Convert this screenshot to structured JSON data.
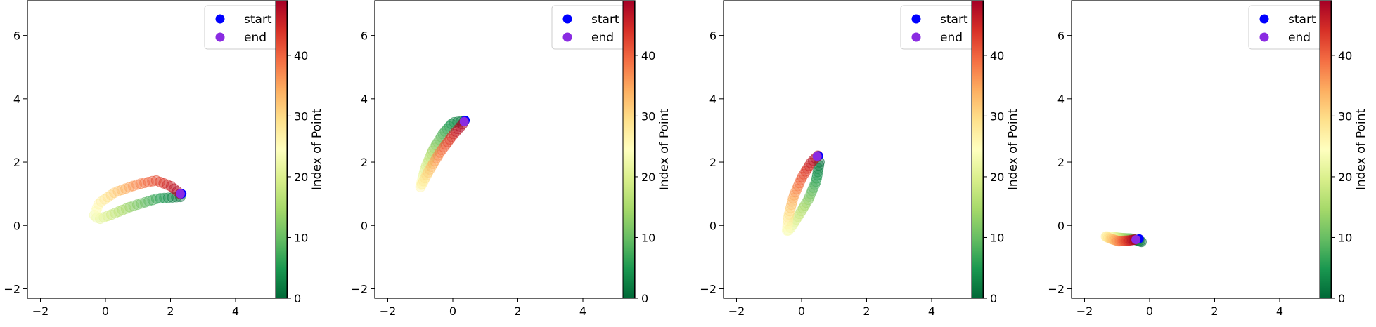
{
  "chart_data": [
    {
      "type": "scatter",
      "xlim": [
        -2.4,
        5.6
      ],
      "ylim": [
        -2.3,
        7.1
      ],
      "xticks": [
        -2,
        0,
        2,
        4
      ],
      "yticks": [
        -2,
        0,
        2,
        4,
        6
      ],
      "waypoints": [
        [
          2.3,
          0.9
        ],
        [
          1.6,
          0.85
        ],
        [
          0.8,
          0.6
        ],
        [
          0.2,
          0.35
        ],
        [
          -0.2,
          0.2
        ],
        [
          -0.35,
          0.3
        ],
        [
          -0.2,
          0.7
        ],
        [
          0.3,
          1.05
        ],
        [
          1.0,
          1.3
        ],
        [
          1.55,
          1.42
        ],
        [
          2.0,
          1.25
        ],
        [
          2.3,
          1.0
        ]
      ],
      "start": [
        2.35,
        1.0
      ],
      "end": [
        2.3,
        1.0
      ]
    },
    {
      "type": "scatter",
      "xlim": [
        -2.4,
        5.6
      ],
      "ylim": [
        -2.3,
        7.1
      ],
      "xticks": [
        -2,
        0,
        2,
        4
      ],
      "yticks": [
        -2,
        0,
        2,
        4,
        6
      ],
      "waypoints": [
        [
          0.35,
          3.3
        ],
        [
          0.0,
          3.25
        ],
        [
          -0.3,
          2.9
        ],
        [
          -0.6,
          2.4
        ],
        [
          -0.85,
          1.8
        ],
        [
          -1.0,
          1.2
        ],
        [
          -0.75,
          1.7
        ],
        [
          -0.4,
          2.3
        ],
        [
          0.0,
          2.85
        ],
        [
          0.3,
          3.2
        ]
      ],
      "start": [
        0.38,
        3.32
      ],
      "end": [
        0.35,
        3.28
      ]
    },
    {
      "type": "scatter",
      "xlim": [
        -2.4,
        5.6
      ],
      "ylim": [
        -2.3,
        7.1
      ],
      "xticks": [
        -2,
        0,
        2,
        4
      ],
      "yticks": [
        -2,
        0,
        2,
        4,
        6
      ],
      "waypoints": [
        [
          0.55,
          2.0
        ],
        [
          0.45,
          1.4
        ],
        [
          0.2,
          0.8
        ],
        [
          -0.1,
          0.3
        ],
        [
          -0.35,
          -0.1
        ],
        [
          -0.45,
          -0.2
        ],
        [
          -0.4,
          0.3
        ],
        [
          -0.25,
          0.9
        ],
        [
          0.0,
          1.5
        ],
        [
          0.3,
          2.0
        ],
        [
          0.5,
          2.2
        ]
      ],
      "start": [
        0.52,
        2.2
      ],
      "end": [
        0.48,
        2.18
      ]
    },
    {
      "type": "scatter",
      "xlim": [
        -2.4,
        5.6
      ],
      "ylim": [
        -2.3,
        7.1
      ],
      "xticks": [
        -2,
        0,
        2,
        4
      ],
      "yticks": [
        -2,
        0,
        2,
        4,
        6
      ],
      "waypoints": [
        [
          -0.25,
          -0.52
        ],
        [
          -0.55,
          -0.42
        ],
        [
          -0.9,
          -0.4
        ],
        [
          -1.2,
          -0.36
        ],
        [
          -1.35,
          -0.35
        ],
        [
          -1.2,
          -0.42
        ],
        [
          -0.95,
          -0.5
        ],
        [
          -0.65,
          -0.48
        ],
        [
          -0.45,
          -0.45
        ]
      ],
      "start": [
        -0.32,
        -0.42
      ],
      "end": [
        -0.42,
        -0.45
      ]
    }
  ],
  "legend": {
    "start_label": "start",
    "end_label": "end",
    "start_color": "#0000ff",
    "end_color": "#8a2be2",
    "placement": "upper right"
  },
  "colorbar": {
    "label": "Index of Point",
    "ticks": [
      0,
      10,
      20,
      30,
      40
    ],
    "range": [
      0,
      49
    ],
    "colormap": "RdYlGn_r"
  }
}
